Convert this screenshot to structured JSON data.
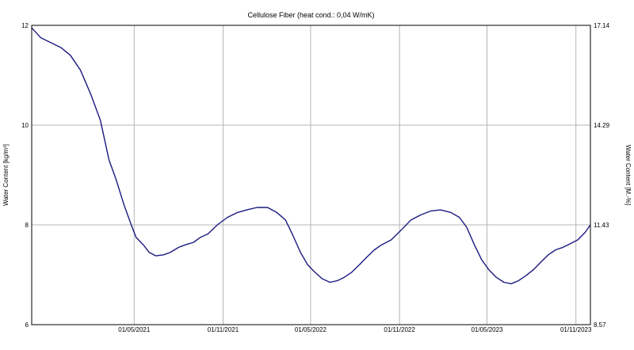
{
  "chart_data": {
    "type": "line",
    "title": "Cellulose Fiber (heat cond.: 0,04 W/mK)",
    "ylabel": "Water Content [kg/m³]",
    "y2label": "Water Content [M.-%]",
    "ylim": [
      6,
      12
    ],
    "y2lim": [
      8.57,
      17.14
    ],
    "yticks": [
      "6",
      "8",
      "10",
      "12"
    ],
    "y2ticks": [
      "8.57",
      "11.43",
      "14.29",
      "17.14"
    ],
    "xlim": [
      "2020-10-01",
      "2023-12-01"
    ],
    "xticks": [
      {
        "date": "2021-05-01",
        "label": "01/05/2021"
      },
      {
        "date": "2021-11-01",
        "label": "01/11/2021"
      },
      {
        "date": "2022-05-01",
        "label": "01/05/2022"
      },
      {
        "date": "2022-11-01",
        "label": "01/11/2022"
      },
      {
        "date": "2023-05-01",
        "label": "01/05/2023"
      },
      {
        "date": "2023-11-01",
        "label": "01/11/2023"
      }
    ],
    "grid": true,
    "line_color": "#1a1a80",
    "series": [
      {
        "x": [
          "2020-10-01",
          "2020-10-20",
          "2020-11-10",
          "2020-12-01",
          "2020-12-20",
          "2021-01-10",
          "2021-02-01",
          "2021-02-20",
          "2021-03-10",
          "2021-03-25",
          "2021-04-10",
          "2021-04-25",
          "2021-05-05",
          "2021-05-20",
          "2021-06-01",
          "2021-06-15",
          "2021-07-01",
          "2021-07-15",
          "2021-08-01",
          "2021-08-15",
          "2021-09-01",
          "2021-09-15",
          "2021-10-01",
          "2021-10-20",
          "2021-11-10",
          "2021-12-01",
          "2021-12-20",
          "2022-01-10",
          "2022-02-01",
          "2022-02-20",
          "2022-03-10",
          "2022-03-25",
          "2022-04-10",
          "2022-04-25",
          "2022-05-10",
          "2022-05-25",
          "2022-06-10",
          "2022-06-25",
          "2022-07-10",
          "2022-07-25",
          "2022-08-10",
          "2022-08-25",
          "2022-09-10",
          "2022-09-25",
          "2022-10-15",
          "2022-11-05",
          "2022-11-25",
          "2022-12-15",
          "2023-01-05",
          "2023-01-25",
          "2023-02-15",
          "2023-03-05",
          "2023-03-20",
          "2023-04-05",
          "2023-04-20",
          "2023-05-05",
          "2023-05-20",
          "2023-06-05",
          "2023-06-20",
          "2023-07-05",
          "2023-07-20",
          "2023-08-05",
          "2023-08-20",
          "2023-09-05",
          "2023-09-20",
          "2023-10-05",
          "2023-10-20",
          "2023-11-05",
          "2023-11-20",
          "2023-12-01"
        ],
        "y": [
          11.95,
          11.75,
          11.65,
          11.55,
          11.4,
          11.1,
          10.6,
          10.1,
          9.3,
          8.9,
          8.4,
          8.0,
          7.75,
          7.6,
          7.45,
          7.38,
          7.4,
          7.45,
          7.55,
          7.6,
          7.65,
          7.75,
          7.82,
          8.0,
          8.15,
          8.25,
          8.3,
          8.35,
          8.35,
          8.25,
          8.1,
          7.8,
          7.45,
          7.2,
          7.05,
          6.92,
          6.85,
          6.88,
          6.95,
          7.05,
          7.2,
          7.35,
          7.5,
          7.6,
          7.7,
          7.9,
          8.1,
          8.2,
          8.28,
          8.3,
          8.25,
          8.15,
          7.95,
          7.6,
          7.3,
          7.1,
          6.95,
          6.85,
          6.82,
          6.88,
          6.98,
          7.1,
          7.25,
          7.4,
          7.5,
          7.55,
          7.62,
          7.7,
          7.85,
          8.0
        ]
      }
    ]
  }
}
